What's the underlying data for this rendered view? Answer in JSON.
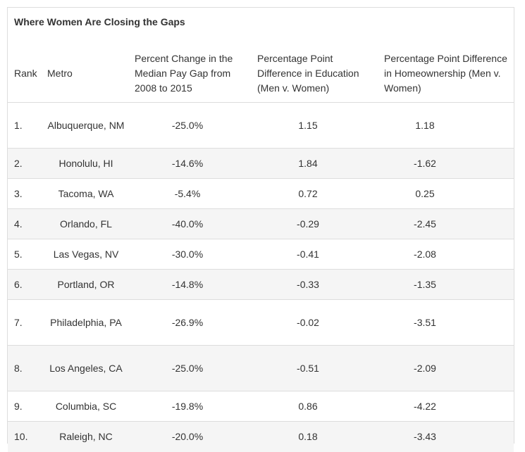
{
  "title": "Where Women Are Closing the Gaps",
  "headers": {
    "rank": "Rank",
    "metro": "Metro",
    "pay": "Percent Change in the Median Pay Gap from 2008 to 2015",
    "edu": "Percentage Point Difference in Education (Men v. Women)",
    "home": "Percentage Point Difference in Homeownership (Men v. Women)"
  },
  "rows": [
    {
      "rank": "1.",
      "metro": "Albuquerque, NM",
      "pay": "-25.0%",
      "edu": "1.15",
      "home": "1.18"
    },
    {
      "rank": "2.",
      "metro": "Honolulu, HI",
      "pay": "-14.6%",
      "edu": "1.84",
      "home": "-1.62"
    },
    {
      "rank": "3.",
      "metro": "Tacoma, WA",
      "pay": "-5.4%",
      "edu": "0.72",
      "home": "0.25"
    },
    {
      "rank": "4.",
      "metro": "Orlando, FL",
      "pay": "-40.0%",
      "edu": "-0.29",
      "home": "-2.45"
    },
    {
      "rank": "5.",
      "metro": "Las Vegas, NV",
      "pay": "-30.0%",
      "edu": "-0.41",
      "home": "-2.08"
    },
    {
      "rank": "6.",
      "metro": "Portland, OR",
      "pay": "-14.8%",
      "edu": "-0.33",
      "home": "-1.35"
    },
    {
      "rank": "7.",
      "metro": "Philadelphia, PA",
      "pay": "-26.9%",
      "edu": "-0.02",
      "home": "-3.51"
    },
    {
      "rank": "8.",
      "metro": "Los Angeles, CA",
      "pay": "-25.0%",
      "edu": "-0.51",
      "home": "-2.09"
    },
    {
      "rank": "9.",
      "metro": "Columbia, SC",
      "pay": "-19.8%",
      "edu": "0.86",
      "home": "-4.22"
    },
    {
      "rank": "10.",
      "metro": "Raleigh, NC",
      "pay": "-20.0%",
      "edu": "0.18",
      "home": "-3.43"
    }
  ]
}
